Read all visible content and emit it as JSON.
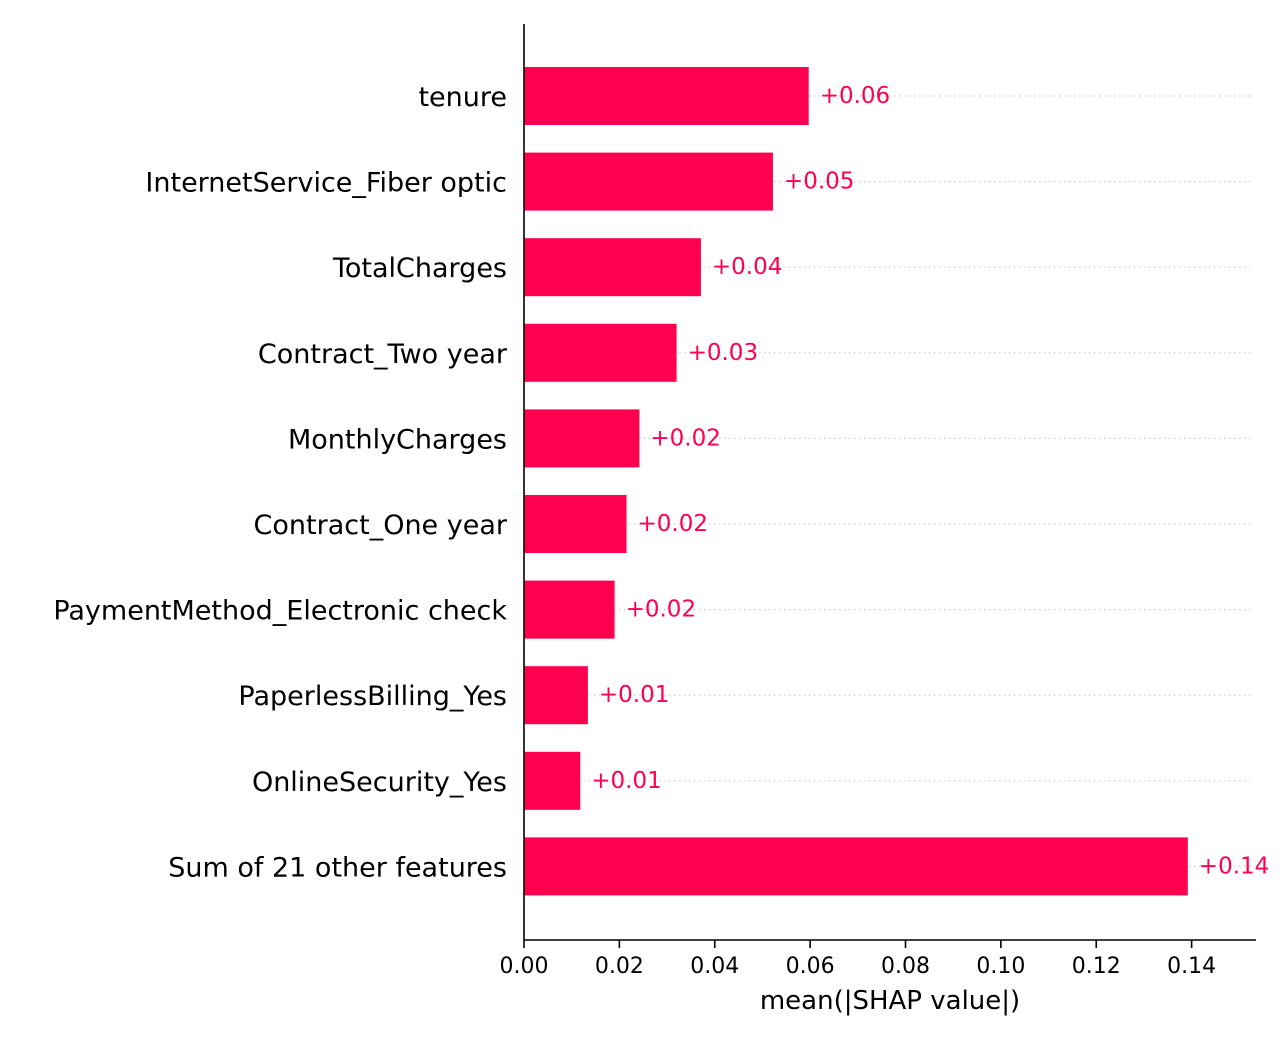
{
  "chart_data": {
    "type": "bar",
    "orientation": "horizontal",
    "categories": [
      "tenure",
      "InternetService_Fiber optic",
      "TotalCharges",
      "Contract_Two year",
      "MonthlyCharges",
      "Contract_One year",
      "PaymentMethod_Electronic check",
      "PaperlessBilling_Yes",
      "OnlineSecurity_Yes",
      "Sum of 21 other features"
    ],
    "values": [
      0.0597,
      0.0522,
      0.0371,
      0.032,
      0.0242,
      0.0215,
      0.019,
      0.0134,
      0.0118,
      0.1392
    ],
    "value_labels": [
      "+0.06",
      "+0.05",
      "+0.04",
      "+0.03",
      "+0.02",
      "+0.02",
      "+0.02",
      "+0.01",
      "+0.01",
      "+0.14"
    ],
    "xlabel": "mean(|SHAP value|)",
    "ylabel": "",
    "title": "",
    "xlim": [
      0,
      0.1535
    ],
    "xticks": [
      0,
      0.02,
      0.04,
      0.06,
      0.08,
      0.1,
      0.12,
      0.14
    ],
    "xtick_labels": [
      "0.00",
      "0.02",
      "0.04",
      "0.06",
      "0.08",
      "0.10",
      "0.12",
      "0.14"
    ],
    "grid": false,
    "colors": {
      "bar": "#ff0051",
      "label": "#ff0051",
      "guide": "#cccccc",
      "axis": "#000000"
    }
  }
}
